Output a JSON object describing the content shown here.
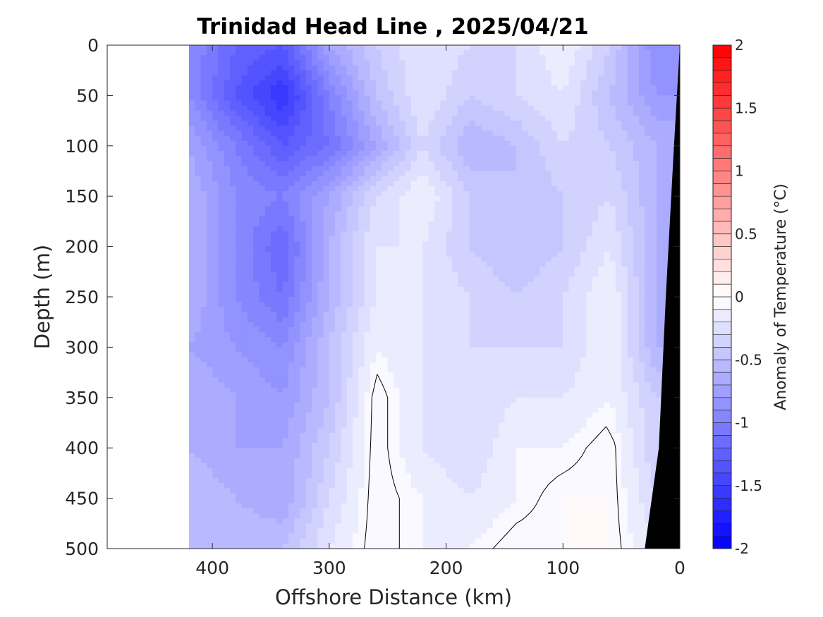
{
  "chart_data": {
    "type": "heatmap",
    "title": "Trinidad Head Line , 2025/04/21",
    "xlabel": "Offshore Distance (km)",
    "ylabel": "Depth (m)",
    "xlim": [
      490,
      0
    ],
    "ylim": [
      0,
      500
    ],
    "x_ticks": [
      "400",
      "300",
      "200",
      "100",
      "0"
    ],
    "y_ticks": [
      "0",
      "50",
      "100",
      "150",
      "200",
      "250",
      "300",
      "350",
      "400",
      "450",
      "500"
    ],
    "colorbar": {
      "label": "Anomaly of Temperature (°C)",
      "range": [
        -2,
        2
      ],
      "levels": 40,
      "ticks": [
        "2",
        "1.5",
        "1",
        "0.5",
        "0",
        "-0.5",
        "-1",
        "-1.5",
        "-2"
      ],
      "colormap": [
        "#0000ff",
        "#ffffff",
        "#ff0000"
      ]
    },
    "data_extent_km": [
      0,
      420
    ],
    "grid_x_km": [
      420,
      380,
      340,
      300,
      260,
      220,
      180,
      140,
      100,
      60,
      20
    ],
    "grid_depth_m": [
      0,
      50,
      100,
      150,
      200,
      250,
      300,
      350,
      400,
      450,
      500
    ],
    "values": [
      [
        -0.9,
        -1.2,
        -1.3,
        -0.7,
        -0.4,
        -0.2,
        -0.3,
        -0.3,
        -0.1,
        -0.4,
        -0.9
      ],
      [
        -0.9,
        -1.3,
        -1.6,
        -1.0,
        -0.5,
        -0.2,
        -0.4,
        -0.3,
        -0.2,
        -0.5,
        -0.8
      ],
      [
        -0.7,
        -1.0,
        -1.3,
        -1.1,
        -0.7,
        -0.3,
        -0.6,
        -0.5,
        -0.3,
        -0.4,
        -0.6
      ],
      [
        -0.6,
        -0.9,
        -1.0,
        -0.7,
        -0.3,
        -0.1,
        -0.4,
        -0.5,
        -0.4,
        -0.3,
        -0.6
      ],
      [
        -0.6,
        -0.9,
        -1.2,
        -0.6,
        -0.2,
        -0.2,
        -0.4,
        -0.5,
        -0.4,
        -0.2,
        -0.6
      ],
      [
        -0.6,
        -0.9,
        -1.1,
        -0.6,
        -0.2,
        -0.2,
        -0.3,
        -0.4,
        -0.3,
        -0.1,
        -0.6
      ],
      [
        -0.7,
        -0.8,
        -0.9,
        -0.5,
        -0.1,
        -0.2,
        -0.3,
        -0.3,
        -0.3,
        -0.1,
        -0.6
      ],
      [
        -0.6,
        -0.7,
        -0.8,
        -0.5,
        0.0,
        -0.2,
        -0.3,
        -0.2,
        -0.2,
        -0.1,
        -0.4
      ],
      [
        -0.6,
        -0.7,
        -0.7,
        -0.4,
        0.0,
        -0.2,
        -0.3,
        -0.1,
        -0.1,
        0.0,
        -0.4
      ],
      [
        -0.5,
        -0.6,
        -0.7,
        -0.3,
        0.0,
        -0.1,
        -0.2,
        -0.1,
        0.0,
        0.0,
        -0.3
      ],
      [
        -0.5,
        -0.5,
        -0.5,
        -0.2,
        0.0,
        -0.1,
        -0.1,
        0.0,
        0.0,
        0.0,
        -0.2
      ]
    ],
    "bottom_boundary": [
      [
        0,
        0
      ],
      [
        5,
        100
      ],
      [
        12,
        250
      ],
      [
        18,
        400
      ],
      [
        30,
        500
      ]
    ]
  }
}
